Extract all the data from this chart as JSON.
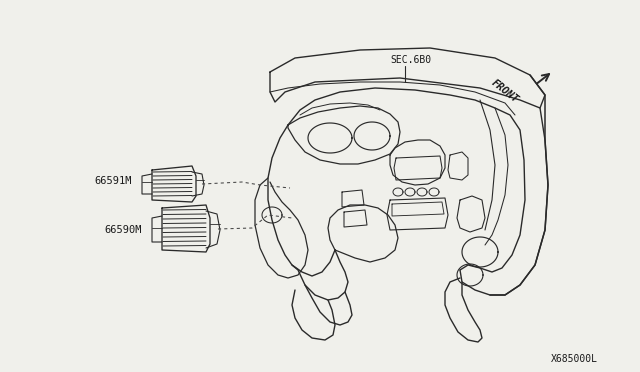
{
  "bg_color": "#f0f0eb",
  "line_color": "#2a2a2a",
  "dashed_color": "#444444",
  "text_color": "#1a1a1a",
  "label_66591M": "66591M",
  "label_66590M": "66590M",
  "label_sec": "SEC.6B0",
  "label_front": "FRONT",
  "label_code": "X685000L",
  "fig_width": 6.4,
  "fig_height": 3.72,
  "dpi": 100
}
